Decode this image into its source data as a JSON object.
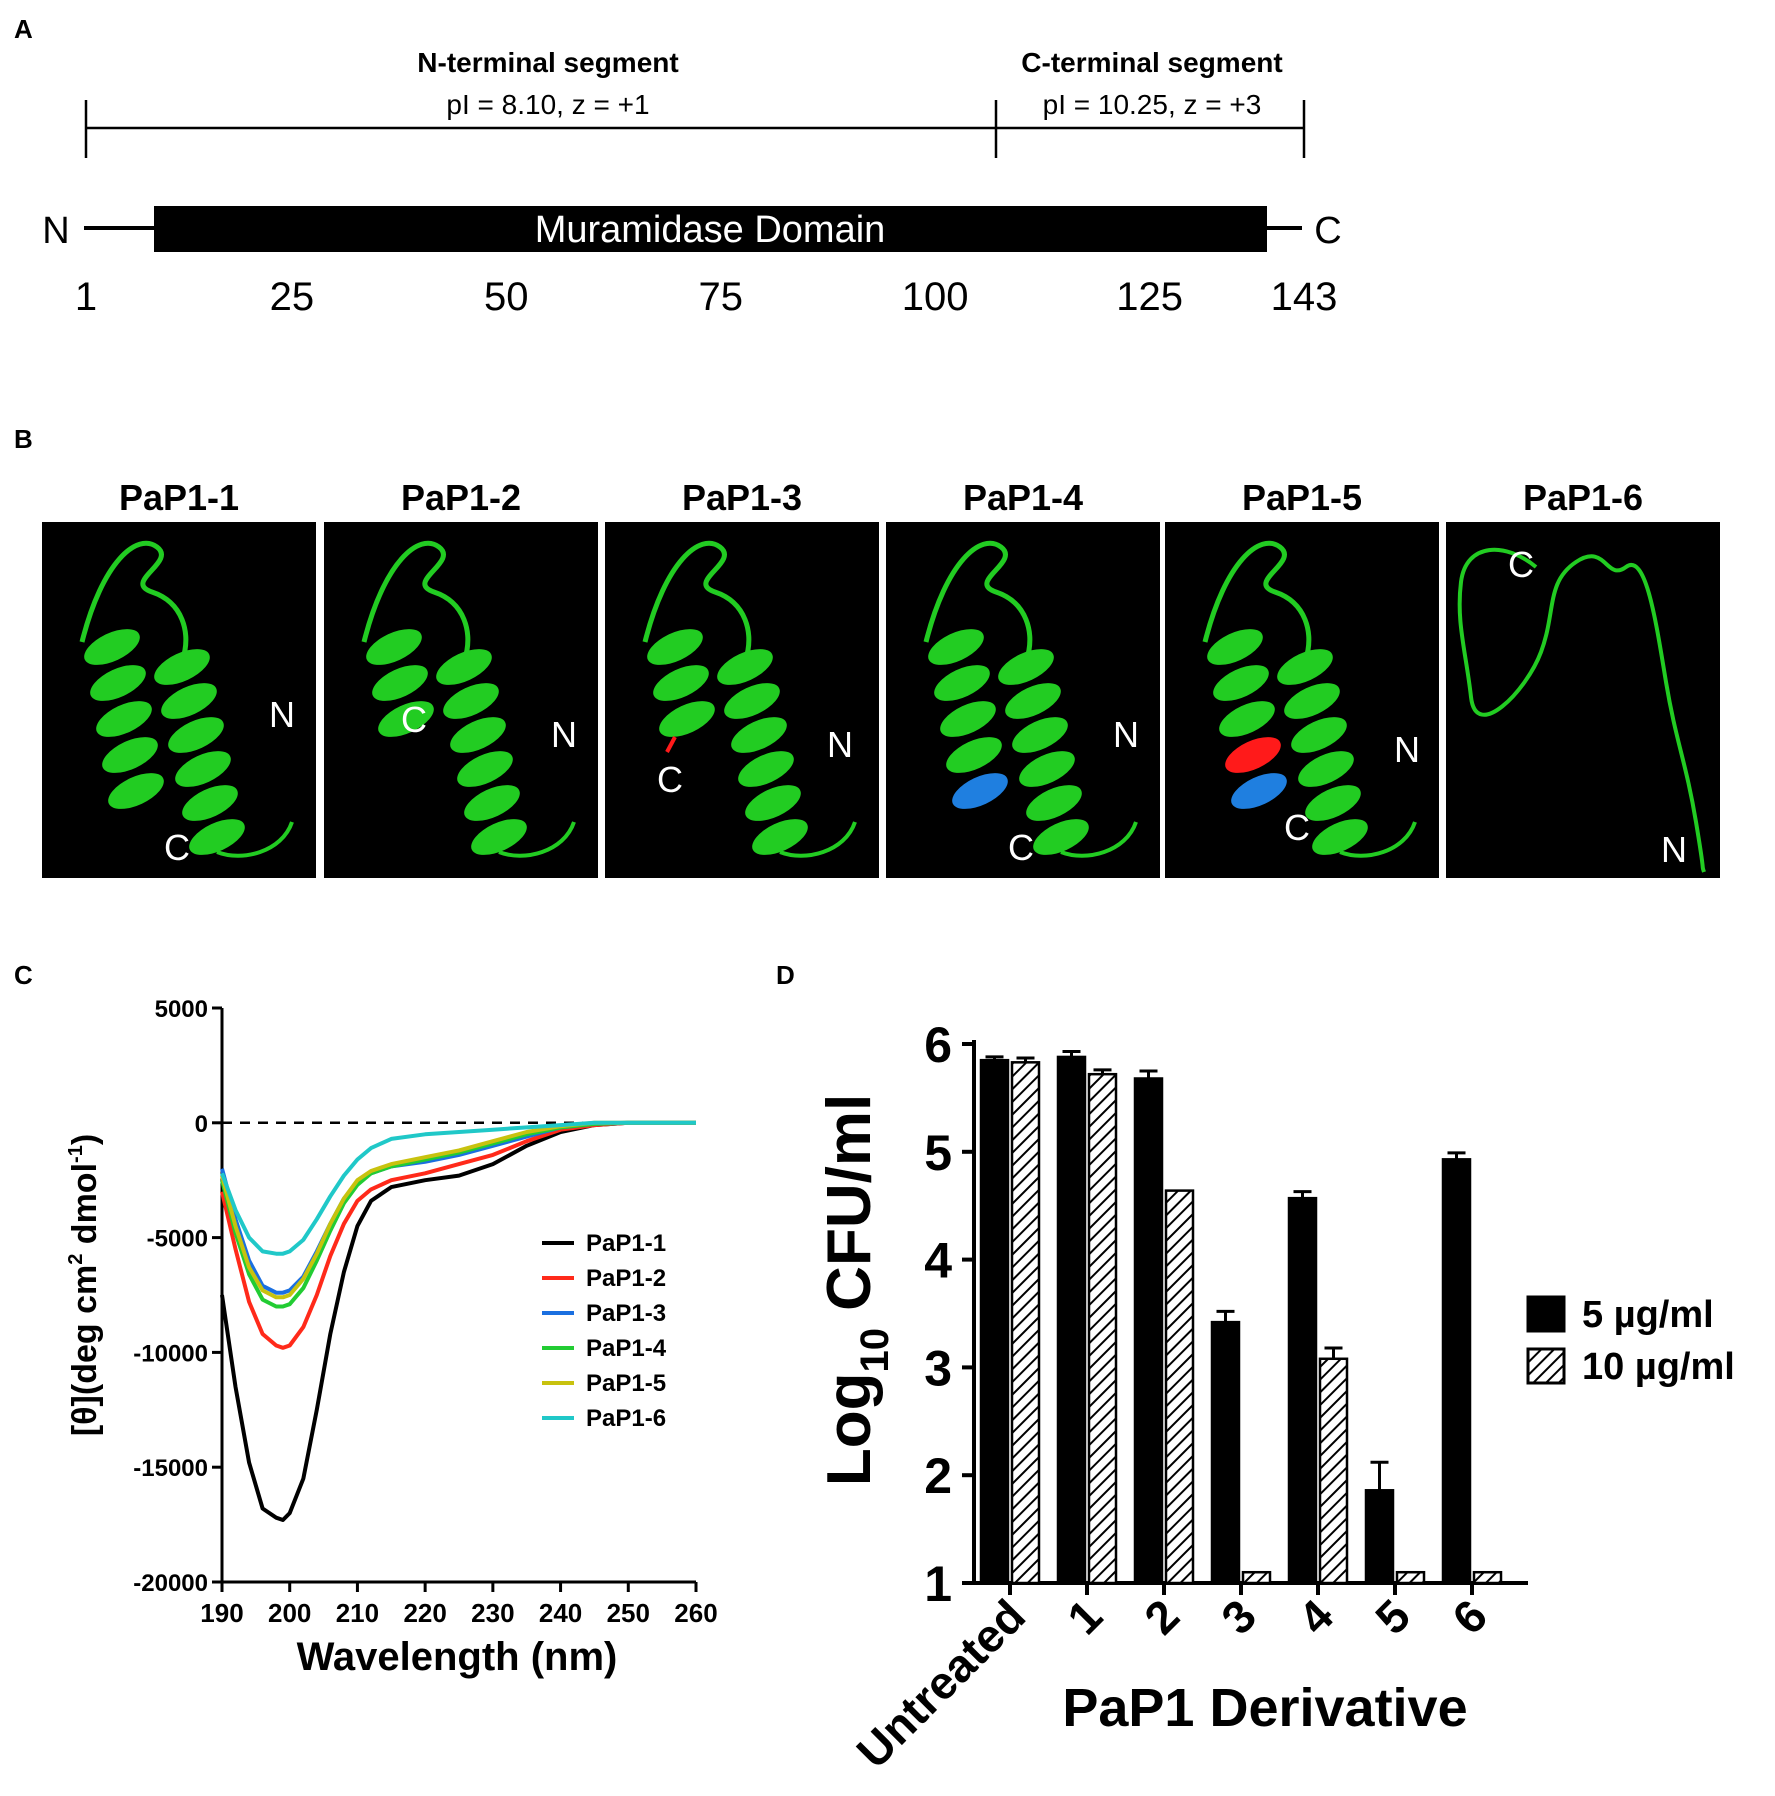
{
  "panels": {
    "A": "A",
    "B": "B",
    "C": "C",
    "D": "D"
  },
  "panel_a": {
    "n_segment_title": "N-terminal segment",
    "n_segment_props": "pI = 8.10, z = +1",
    "c_segment_title": "C-terminal segment",
    "c_segment_props": "pI = 10.25, z = +3",
    "domain_label": "Muramidase Domain",
    "n_end": "N",
    "c_end": "C",
    "positions": [
      "1",
      "25",
      "50",
      "75",
      "100",
      "125",
      "143"
    ],
    "position_values": [
      1,
      25,
      50,
      75,
      100,
      125,
      143
    ],
    "colors": {
      "domain": "#000000",
      "line": "#000000"
    }
  },
  "panel_b": {
    "structures": [
      {
        "title": "PaP1-1",
        "n_label": "N",
        "c_label": "C"
      },
      {
        "title": "PaP1-2",
        "n_label": "N",
        "c_label": "C"
      },
      {
        "title": "PaP1-3",
        "n_label": "N",
        "c_label": "C"
      },
      {
        "title": "PaP1-4",
        "n_label": "N",
        "c_label": "C"
      },
      {
        "title": "PaP1-5",
        "n_label": "N",
        "c_label": "C"
      },
      {
        "title": "PaP1-6",
        "n_label": "N",
        "c_label": "C"
      }
    ],
    "colors": {
      "helix": "#22cc22",
      "blue_region": "#1f7fe0",
      "red_region": "#ff1a1a",
      "background": "#000000"
    }
  },
  "chart_data": [
    {
      "type": "line",
      "panel": "C",
      "xlabel": "Wavelength (nm)",
      "ylabel_main": "[θ](deg cm",
      "ylabel_sup1": "2",
      "ylabel_mid": " dmol",
      "ylabel_sup2": "-1",
      "ylabel_end": ")",
      "xlim": [
        190,
        260
      ],
      "ylim": [
        -20000,
        5000
      ],
      "xticks": [
        "190",
        "200",
        "210",
        "220",
        "230",
        "240",
        "250",
        "260"
      ],
      "yticks": [
        "5000",
        "0",
        "-5000",
        "-10000",
        "-15000",
        "-20000"
      ],
      "zero_line": "dashed",
      "legend_position": "right",
      "x": [
        190,
        192,
        194,
        196,
        198,
        199,
        200,
        202,
        204,
        206,
        208,
        210,
        212,
        215,
        220,
        225,
        230,
        235,
        240,
        245,
        250,
        255,
        260
      ],
      "series": [
        {
          "name": "PaP1-1",
          "color": "#000000",
          "values": [
            -7500,
            -11500,
            -14800,
            -16800,
            -17200,
            -17300,
            -17000,
            -15500,
            -12500,
            -9200,
            -6500,
            -4500,
            -3400,
            -2800,
            -2500,
            -2300,
            -1800,
            -1000,
            -400,
            -100,
            0,
            0,
            0
          ]
        },
        {
          "name": "PaP1-2",
          "color": "#ff2a1a",
          "values": [
            -3000,
            -5500,
            -7800,
            -9200,
            -9700,
            -9800,
            -9700,
            -8900,
            -7500,
            -5800,
            -4400,
            -3400,
            -2900,
            -2500,
            -2200,
            -1800,
            -1400,
            -800,
            -300,
            -100,
            0,
            0,
            0
          ]
        },
        {
          "name": "PaP1-3",
          "color": "#1a6fe0",
          "values": [
            -2000,
            -4200,
            -6000,
            -7100,
            -7400,
            -7400,
            -7300,
            -6700,
            -5600,
            -4400,
            -3300,
            -2600,
            -2200,
            -1900,
            -1700,
            -1400,
            -1000,
            -600,
            -200,
            -50,
            0,
            0,
            0
          ]
        },
        {
          "name": "PaP1-4",
          "color": "#22cc33",
          "values": [
            -2500,
            -4800,
            -6600,
            -7700,
            -8000,
            -8000,
            -7900,
            -7200,
            -6000,
            -4700,
            -3500,
            -2700,
            -2200,
            -1900,
            -1600,
            -1300,
            -900,
            -500,
            -200,
            -50,
            0,
            0,
            0
          ]
        },
        {
          "name": "PaP1-5",
          "color": "#c8c20e",
          "values": [
            -2300,
            -4500,
            -6300,
            -7300,
            -7600,
            -7600,
            -7500,
            -6800,
            -5700,
            -4400,
            -3300,
            -2500,
            -2100,
            -1800,
            -1500,
            -1200,
            -800,
            -400,
            -150,
            0,
            0,
            0,
            0
          ]
        },
        {
          "name": "PaP1-6",
          "color": "#20c8c8",
          "values": [
            -2200,
            -3800,
            -5000,
            -5600,
            -5700,
            -5700,
            -5600,
            -5100,
            -4200,
            -3200,
            -2300,
            -1600,
            -1100,
            -700,
            -500,
            -400,
            -300,
            -200,
            -100,
            0,
            0,
            0,
            0
          ]
        }
      ]
    },
    {
      "type": "bar",
      "panel": "D",
      "xlabel": "PaP1 Derivative",
      "ylabel_main": "Log",
      "ylabel_sub": "10",
      "ylabel_end": " CFU/ml",
      "ylim": [
        1,
        6
      ],
      "yticks": [
        "1",
        "2",
        "3",
        "4",
        "5",
        "6"
      ],
      "categories": [
        "Untreated",
        "1",
        "2",
        "3",
        "4",
        "5",
        "6"
      ],
      "legend_position": "right",
      "series": [
        {
          "name": "5 µg/ml",
          "fill": "solid",
          "color": "#000000",
          "values": [
            5.85,
            5.88,
            5.68,
            3.42,
            4.57,
            1.86,
            4.93
          ],
          "errors": [
            0.03,
            0.05,
            0.07,
            0.1,
            0.06,
            0.26,
            0.06
          ]
        },
        {
          "name": "10 µg/ml",
          "fill": "hatched",
          "color": "#000000",
          "values": [
            5.83,
            5.72,
            4.64,
            1.1,
            3.08,
            1.1,
            1.1
          ],
          "errors": [
            0.04,
            0.04,
            0,
            0,
            0.1,
            0,
            0
          ]
        }
      ]
    }
  ]
}
